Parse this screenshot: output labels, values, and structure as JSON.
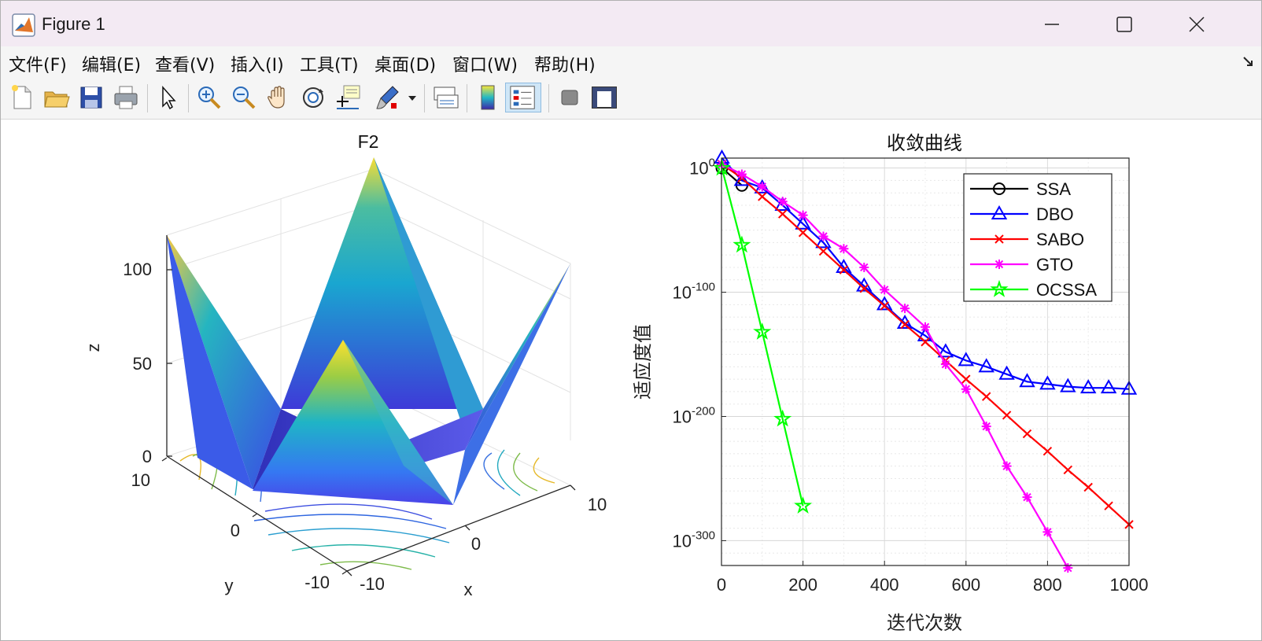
{
  "window": {
    "title": "Figure 1"
  },
  "menu": [
    "文件(F)",
    "编辑(E)",
    "查看(V)",
    "插入(I)",
    "工具(T)",
    "桌面(D)",
    "窗口(W)",
    "帮助(H)"
  ],
  "toolbar_icons": [
    "new-file-icon",
    "open-folder-icon",
    "save-icon",
    "print-icon",
    "select-pointer-icon",
    "zoom-in-icon",
    "zoom-out-icon",
    "pan-hand-icon",
    "rotate-3d-icon",
    "data-tips-icon",
    "brush-icon",
    "brush-dropdown-icon",
    "link-plot-icon",
    "colorbar-icon",
    "legend-icon",
    "hide-plot-tools-icon",
    "show-plot-tools-icon"
  ],
  "left_plot": {
    "title": "F2",
    "xlabel": "x",
    "ylabel": "y",
    "zlabel": "z",
    "z_ticks": [
      "0",
      "50",
      "100"
    ],
    "y_ticks": [
      "10",
      "0",
      "-10"
    ],
    "x_ticks": [
      "-10",
      "0",
      "10"
    ]
  },
  "chart_data": {
    "type": "line",
    "title": "收敛曲线",
    "xlabel": "迭代次数",
    "ylabel": "适应度值",
    "xlim": [
      0,
      1000
    ],
    "ylim_exponent": [
      -320,
      8
    ],
    "yscale": "log",
    "x_ticks": [
      "0",
      "200",
      "400",
      "600",
      "800",
      "1000"
    ],
    "y_ticks": [
      {
        "exp": 0,
        "base": "10",
        "sup": "0"
      },
      {
        "exp": -100,
        "base": "10",
        "sup": "-100"
      },
      {
        "exp": -200,
        "base": "10",
        "sup": "-200"
      },
      {
        "exp": -300,
        "base": "10",
        "sup": "-300"
      }
    ],
    "grid": true,
    "legend_position": "top-right",
    "series": [
      {
        "name": "SSA",
        "color": "#000000",
        "marker": "circle",
        "x": [
          1,
          50
        ],
        "y_exp": [
          0,
          -14
        ]
      },
      {
        "name": "DBO",
        "color": "#0000ff",
        "marker": "triangle",
        "x": [
          1,
          50,
          100,
          150,
          200,
          250,
          300,
          350,
          400,
          450,
          500,
          550,
          600,
          650,
          700,
          750,
          800,
          850,
          900,
          950,
          1000
        ],
        "y_exp": [
          8,
          -10,
          -16,
          -30,
          -45,
          -60,
          -80,
          -95,
          -110,
          -125,
          -135,
          -148,
          -155,
          -160,
          -166,
          -172,
          -174,
          -176,
          -177,
          -177,
          -178
        ]
      },
      {
        "name": "SABO",
        "color": "#ff0000",
        "marker": "x",
        "x": [
          1,
          50,
          100,
          150,
          200,
          250,
          300,
          350,
          400,
          450,
          500,
          550,
          600,
          650,
          700,
          750,
          800,
          850,
          900,
          950,
          1000
        ],
        "y_exp": [
          3,
          -8,
          -23,
          -37,
          -52,
          -67,
          -82,
          -97,
          -111,
          -126,
          -140,
          -155,
          -170,
          -184,
          -199,
          -214,
          -228,
          -243,
          -257,
          -272,
          -287
        ]
      },
      {
        "name": "GTO",
        "color": "#ff00ff",
        "marker": "star",
        "x": [
          1,
          50,
          100,
          150,
          200,
          250,
          300,
          350,
          400,
          450,
          500,
          550,
          600,
          650,
          700,
          750,
          800,
          850
        ],
        "y_exp": [
          3,
          -5,
          -15,
          -27,
          -38,
          -55,
          -65,
          -80,
          -98,
          -113,
          -128,
          -158,
          -178,
          -208,
          -240,
          -265,
          -293,
          -322
        ]
      },
      {
        "name": "OCSSA",
        "color": "#00ff00",
        "marker": "pentagram",
        "x": [
          1,
          50,
          100,
          150,
          200
        ],
        "y_exp": [
          0,
          -62,
          -132,
          -202,
          -272
        ]
      }
    ]
  }
}
